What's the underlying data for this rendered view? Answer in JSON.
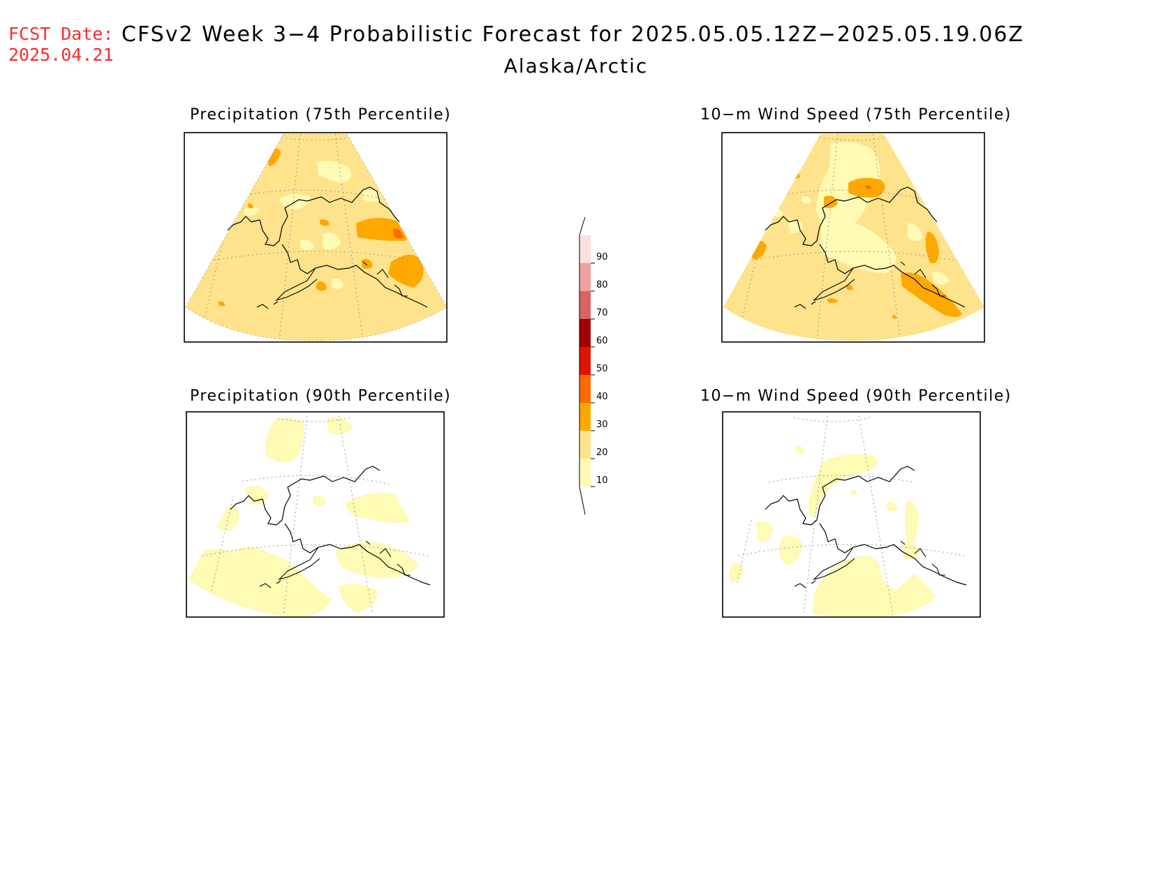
{
  "header": {
    "fcst_label": "FCST Date:",
    "fcst_date": "2025.04.21",
    "title": "CFSv2 Week 3−4 Probabilistic Forecast for 2025.05.05.12Z−2025.05.19.06Z",
    "region": "Alaska/Arctic"
  },
  "panels": [
    {
      "id": "precip-75",
      "title": "Precipitation (75th Percentile)"
    },
    {
      "id": "wind-75",
      "title": "10−m Wind Speed (75th Percentile)"
    },
    {
      "id": "precip-90",
      "title": "Precipitation (90th Percentile)"
    },
    {
      "id": "wind-90",
      "title": "10−m Wind Speed (90th Percentile)"
    }
  ],
  "colorbar": {
    "levels": [
      "10",
      "20",
      "30",
      "40",
      "50",
      "60",
      "70",
      "80",
      "90"
    ],
    "colors": [
      "#fffab4",
      "#fee38c",
      "#ffa800",
      "#ff6a00",
      "#e01400",
      "#a00000",
      "#d86464",
      "#f0a0a0",
      "#fce0e0"
    ]
  },
  "colors": {
    "header_red": "#ff2a2a",
    "prob_10_20": "#fffab4",
    "prob_20_30": "#fee38c",
    "prob_30_40": "#ffa800",
    "prob_40_50": "#ff6a00"
  }
}
